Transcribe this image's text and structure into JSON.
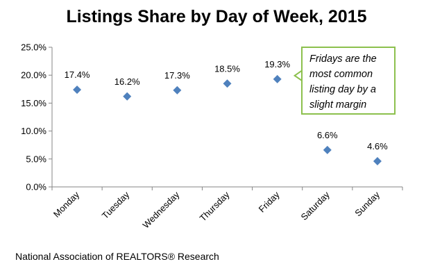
{
  "chart_data": {
    "type": "scatter",
    "title": "Listings Share by Day of Week, 2015",
    "categories": [
      "Monday",
      "Tuesday",
      "Wednesday",
      "Thursday",
      "Friday",
      "Saturday",
      "Sunday"
    ],
    "values": [
      17.4,
      16.2,
      17.3,
      18.5,
      19.3,
      6.6,
      4.6
    ],
    "data_labels": [
      "17.4%",
      "16.2%",
      "17.3%",
      "18.5%",
      "19.3%",
      "6.6%",
      "4.6%"
    ],
    "yticks": [
      "0.0%",
      "5.0%",
      "10.0%",
      "15.0%",
      "20.0%",
      "25.0%"
    ],
    "ylim": [
      0,
      25
    ],
    "xlabel": "",
    "ylabel": "",
    "grid": false,
    "legend": "none",
    "marker": "diamond",
    "annotation": {
      "text": "Fridays are the most common listing day by a slight margin",
      "points_to": "Friday"
    }
  },
  "colors": {
    "marker": "#4f81bd",
    "axis": "#868686",
    "callout_border": "#8cc04d"
  },
  "source_note": "National Association of REALTORS® Research"
}
